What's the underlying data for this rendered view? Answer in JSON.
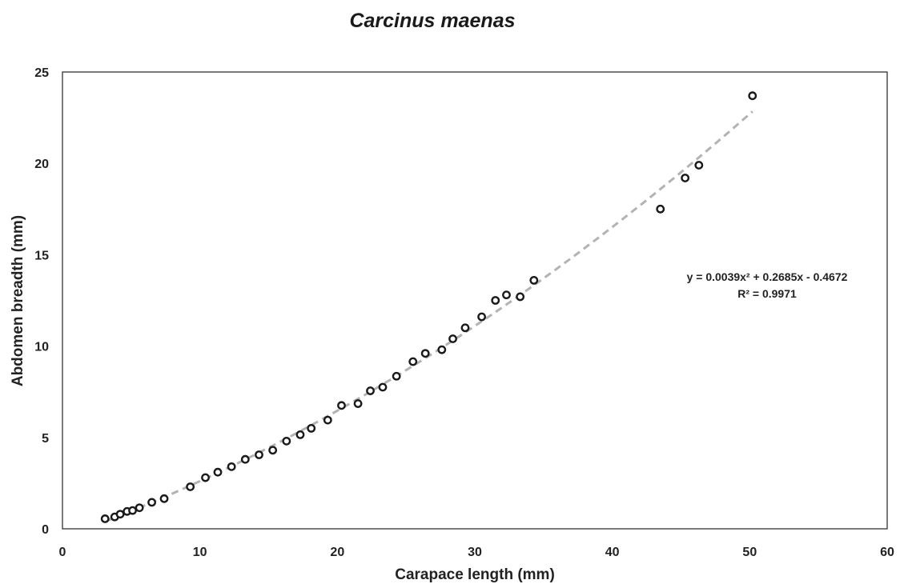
{
  "chart_data": {
    "type": "scatter",
    "title": "Carcinus maenas",
    "xlabel": "Carapace length (mm)",
    "ylabel": "Abdomen breadth (mm)",
    "xlim": [
      0,
      60
    ],
    "ylim": [
      0,
      25
    ],
    "xticks": [
      0,
      10,
      20,
      30,
      40,
      50,
      60
    ],
    "yticks": [
      0,
      5,
      10,
      15,
      20,
      25
    ],
    "grid": false,
    "colors": {
      "points": "#1a1a1a",
      "trendline": "#b3b3b3",
      "frame": "#333333"
    },
    "points": [
      {
        "x": 3.1,
        "y": 0.55
      },
      {
        "x": 3.8,
        "y": 0.65
      },
      {
        "x": 4.2,
        "y": 0.8
      },
      {
        "x": 4.7,
        "y": 0.95
      },
      {
        "x": 5.1,
        "y": 1.0
      },
      {
        "x": 5.6,
        "y": 1.15
      },
      {
        "x": 6.5,
        "y": 1.45
      },
      {
        "x": 7.4,
        "y": 1.65
      },
      {
        "x": 9.3,
        "y": 2.3
      },
      {
        "x": 10.4,
        "y": 2.8
      },
      {
        "x": 11.3,
        "y": 3.1
      },
      {
        "x": 12.3,
        "y": 3.4
      },
      {
        "x": 13.3,
        "y": 3.8
      },
      {
        "x": 14.3,
        "y": 4.05
      },
      {
        "x": 15.3,
        "y": 4.3
      },
      {
        "x": 16.3,
        "y": 4.8
      },
      {
        "x": 17.3,
        "y": 5.15
      },
      {
        "x": 18.1,
        "y": 5.5
      },
      {
        "x": 19.3,
        "y": 5.95
      },
      {
        "x": 20.3,
        "y": 6.75
      },
      {
        "x": 21.5,
        "y": 6.85
      },
      {
        "x": 22.4,
        "y": 7.55
      },
      {
        "x": 23.3,
        "y": 7.75
      },
      {
        "x": 24.3,
        "y": 8.35
      },
      {
        "x": 25.5,
        "y": 9.15
      },
      {
        "x": 26.4,
        "y": 9.6
      },
      {
        "x": 27.6,
        "y": 9.8
      },
      {
        "x": 28.4,
        "y": 10.4
      },
      {
        "x": 29.3,
        "y": 11.0
      },
      {
        "x": 30.5,
        "y": 11.6
      },
      {
        "x": 31.5,
        "y": 12.5
      },
      {
        "x": 32.3,
        "y": 12.8
      },
      {
        "x": 33.3,
        "y": 12.7
      },
      {
        "x": 34.3,
        "y": 13.6
      },
      {
        "x": 43.5,
        "y": 17.5
      },
      {
        "x": 45.3,
        "y": 19.2
      },
      {
        "x": 46.3,
        "y": 19.9
      },
      {
        "x": 50.2,
        "y": 23.7
      }
    ],
    "trendline": {
      "type": "polynomial",
      "order": 2,
      "coefficients": [
        0.0039,
        0.2685,
        -0.4672
      ],
      "x_range": [
        3.1,
        50.2
      ],
      "equation": "y = 0.0039x² + 0.2685x - 0.4672",
      "r_squared": "R² = 0.9971"
    }
  }
}
